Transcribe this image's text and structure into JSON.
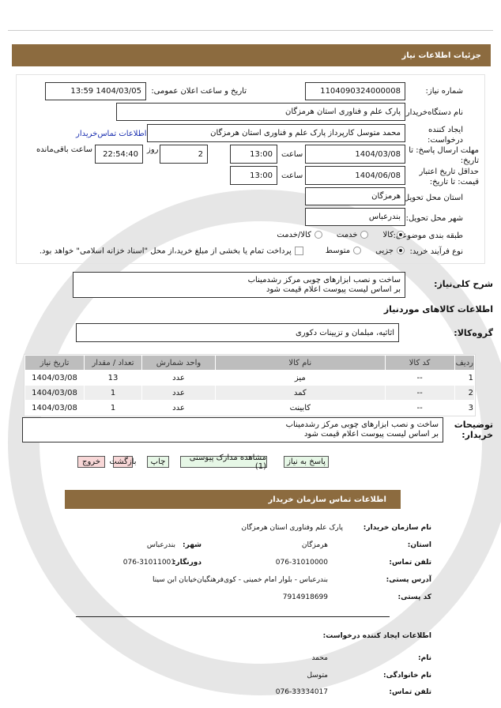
{
  "header": {
    "title": "جزئیات اطلاعات نیاز"
  },
  "form": {
    "need_number_label": "شماره نیاز:",
    "need_number": "1104090324000008",
    "announce_label": "تاریخ و ساعت اعلان عمومی:",
    "announce_value": "1404/03/05 13:59",
    "buyer_org_label": "نام دستگاه‌خریدار:",
    "buyer_org": "پارک علم و فناوری استان هرمزگان",
    "creator_label": "ایجاد کننده درخواست:",
    "creator": "محمد متوسل کارپرداز پارک علم و فناوری استان هرمزگان",
    "contact_link": "اطلاعات تماس‌خریدار",
    "deadline_label": "مهلت ارسال پاسخ: تا تاریخ:",
    "deadline_date": "1404/03/08",
    "time_label": "ساعت",
    "deadline_time": "13:00",
    "days": "2",
    "days_label": "روز",
    "remaining": "22:54:40",
    "remaining_label": "ساعت باقی‌مانده",
    "validity_label": "حداقل تاریخ اعتبار قیمت: تا تاریخ:",
    "validity_date": "1404/06/08",
    "validity_time": "13:00",
    "province_label": "استان محل تحویل:",
    "province": "هرمزگان",
    "city_label": "شهر محل تحویل:",
    "city": "بندرعباس",
    "category_label": "طبقه بندی موضوعی:",
    "category_options": [
      "کالا",
      "خدمت",
      "کالا/خدمت"
    ],
    "category_selected": "کالا",
    "process_label": "نوع فرآیند خرید:",
    "process_options": [
      "جزیی",
      "متوسط"
    ],
    "process_selected": "جزیی",
    "payment_note": "پرداخت تمام یا بخشی از مبلغ خرید،از محل \"اسناد خزانه اسلامی\" خواهد بود."
  },
  "summary": {
    "label": "شرح کلی‌نیاز:",
    "line1": "ساخت و نصب ابزارهای چوبی مرکز رشدمیناب",
    "line2": "بر اساس لیست پیوست اعلام قیمت شود"
  },
  "goods": {
    "title": "اطلاعات کالاهای موردنیاز",
    "group_label": "گروه‌کالا:",
    "group": "اثاثیه، مبلمان و تزیینات دکوری"
  },
  "table": {
    "headers": [
      "ردیف",
      "کد کالا",
      "نام کالا",
      "واحد شمارش",
      "تعداد / مقدار",
      "تاریخ نیاز"
    ],
    "rows": [
      [
        "1",
        "--",
        "میز",
        "عدد",
        "13",
        "1404/03/08"
      ],
      [
        "2",
        "--",
        "کمد",
        "عدد",
        "1",
        "1404/03/08"
      ],
      [
        "3",
        "--",
        "کابینت",
        "عدد",
        "1",
        "1404/03/08"
      ]
    ]
  },
  "notes": {
    "label": "توضیحات خریدار:",
    "line1": "ساخت و نصب ابزارهای چوبی مرکز رشدمیناب",
    "line2": "بر اساس لیست پیوست اعلام قیمت شود"
  },
  "buttons": {
    "reply": "پاسخ به نیاز",
    "attachments": "مشاهده مدارک پیوستی (1)",
    "print": "چاپ",
    "back": "بازگشت",
    "exit": "خروج"
  },
  "contact": {
    "title": "اطلاعات تماس سازمان خریدار",
    "org_label": "نام سازمان خریدار:",
    "org": "پارک علم وفناوری استان هرمزگان",
    "province_label": "استان:",
    "province": "هرمزگان",
    "city_label": "شهر:",
    "city": "بندرعباس",
    "phone_label": "تلفن تماس:",
    "phone": "076-31010000",
    "fax_label": "دورنگار:",
    "fax": "076-31011001",
    "address_label": "آدرس پستی:",
    "address": "بندرعباس - بلوار امام خمینی - کوی‌فرهنگیان‌خیابان ابن سینا",
    "postal_label": "کد پستی:",
    "postal": "7914918699",
    "creator_title": "اطلاعات ایجاد کننده درخواست:",
    "name_label": "نام:",
    "name": "محمد",
    "family_label": "نام خانوادگی:",
    "family": "متوسل",
    "cphone_label": "تلفن تماس:",
    "cphone": "076-33334017"
  }
}
